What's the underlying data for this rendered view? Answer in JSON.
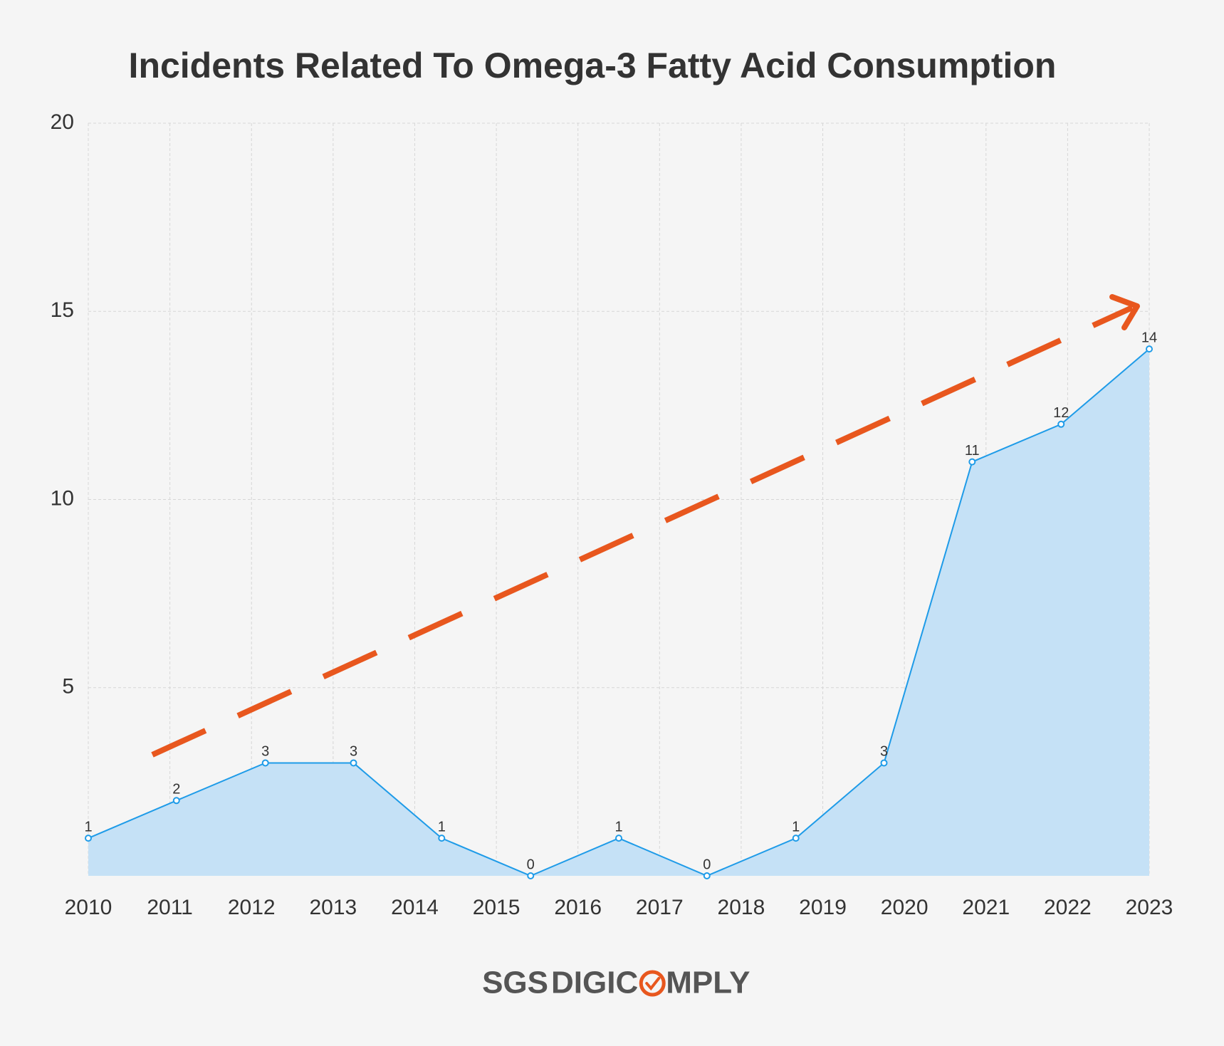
{
  "chart_data": {
    "type": "area",
    "title": "Incidents Related To Omega-3 Fatty Acid Consumption",
    "x": [
      2010,
      2011.08,
      2012.17,
      2013.25,
      2014.33,
      2015.42,
      2016.5,
      2017.58,
      2018.67,
      2019.75,
      2020.83,
      2021.92,
      2023
    ],
    "values": [
      1,
      2,
      3,
      3,
      1,
      0,
      1,
      0,
      1,
      3,
      11,
      12,
      14
    ],
    "color": "#1e9be8",
    "fill_color": "#c5e1f6",
    "xlim": [
      2010,
      2023
    ],
    "xticks": [
      2010,
      2011,
      2012,
      2013,
      2014,
      2015,
      2016,
      2017,
      2018,
      2019,
      2020,
      2021,
      2022,
      2023
    ],
    "ylim": [
      0,
      20
    ],
    "yticks": [
      5,
      10,
      15,
      20
    ],
    "grid": true
  },
  "brand": {
    "part1": "SGS",
    "part2": "DIGIC",
    "part3": "MPLY"
  }
}
